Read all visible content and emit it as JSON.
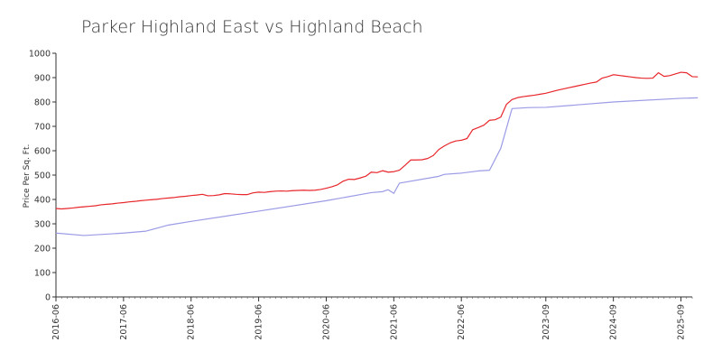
{
  "chart_data": {
    "type": "line",
    "title": "Parker Highland East vs Highland Beach",
    "xlabel": "",
    "ylabel": "Price Per Sq. Ft.",
    "ylim": [
      0,
      1000
    ],
    "yticks": [
      0,
      100,
      200,
      300,
      400,
      500,
      600,
      700,
      800,
      900,
      1000
    ],
    "xticks": [
      "2016-06",
      "2017-06",
      "2018-06",
      "2019-06",
      "2020-06",
      "2021-06",
      "2022-06",
      "2023-09",
      "2024-09",
      "2025-09"
    ],
    "xlim": [
      "2016-06",
      "2025-11"
    ],
    "grid": false,
    "legend": "none",
    "series": [
      {
        "color": "#e8262b",
        "points": [
          [
            "2016-06",
            363
          ],
          [
            "2016-07",
            361
          ],
          [
            "2016-08",
            363
          ],
          [
            "2016-09",
            365
          ],
          [
            "2016-10",
            368
          ],
          [
            "2016-11",
            370
          ],
          [
            "2016-12",
            372
          ],
          [
            "2017-01",
            374
          ],
          [
            "2017-02",
            378
          ],
          [
            "2017-03",
            380
          ],
          [
            "2017-04",
            382
          ],
          [
            "2017-05",
            385
          ],
          [
            "2017-06",
            387
          ],
          [
            "2017-07",
            390
          ],
          [
            "2017-08",
            392
          ],
          [
            "2017-09",
            395
          ],
          [
            "2017-10",
            397
          ],
          [
            "2017-11",
            399
          ],
          [
            "2017-12",
            401
          ],
          [
            "2018-01",
            404
          ],
          [
            "2018-02",
            406
          ],
          [
            "2018-03",
            408
          ],
          [
            "2018-04",
            411
          ],
          [
            "2018-05",
            413
          ],
          [
            "2018-06",
            416
          ],
          [
            "2018-07",
            418
          ],
          [
            "2018-08",
            421
          ],
          [
            "2018-09",
            415
          ],
          [
            "2018-10",
            416
          ],
          [
            "2018-11",
            419
          ],
          [
            "2018-12",
            424
          ],
          [
            "2019-01",
            423
          ],
          [
            "2019-02",
            421
          ],
          [
            "2019-03",
            420
          ],
          [
            "2019-04",
            420
          ],
          [
            "2019-05",
            427
          ],
          [
            "2019-06",
            430
          ],
          [
            "2019-07",
            429
          ],
          [
            "2019-08",
            432
          ],
          [
            "2019-09",
            434
          ],
          [
            "2019-10",
            435
          ],
          [
            "2019-11",
            434
          ],
          [
            "2019-12",
            436
          ],
          [
            "2020-01",
            437
          ],
          [
            "2020-02",
            438
          ],
          [
            "2020-03",
            437
          ],
          [
            "2020-04",
            438
          ],
          [
            "2020-05",
            441
          ],
          [
            "2020-06",
            446
          ],
          [
            "2020-07",
            452
          ],
          [
            "2020-08",
            460
          ],
          [
            "2020-09",
            475
          ],
          [
            "2020-10",
            483
          ],
          [
            "2020-11",
            482
          ],
          [
            "2020-12",
            488
          ],
          [
            "2021-01",
            495
          ],
          [
            "2021-02",
            512
          ],
          [
            "2021-03",
            510
          ],
          [
            "2021-04",
            518
          ],
          [
            "2021-05",
            512
          ],
          [
            "2021-06",
            514
          ],
          [
            "2021-07",
            520
          ],
          [
            "2021-08",
            540
          ],
          [
            "2021-09",
            562
          ],
          [
            "2021-10",
            562
          ],
          [
            "2021-11",
            563
          ],
          [
            "2021-12",
            568
          ],
          [
            "2022-01",
            580
          ],
          [
            "2022-02",
            605
          ],
          [
            "2022-03",
            620
          ],
          [
            "2022-04",
            632
          ],
          [
            "2022-05",
            640
          ],
          [
            "2022-06",
            643
          ],
          [
            "2022-07",
            650
          ],
          [
            "2022-08",
            686
          ],
          [
            "2022-09",
            695
          ],
          [
            "2022-10",
            705
          ],
          [
            "2022-11",
            725
          ],
          [
            "2022-12",
            727
          ],
          [
            "2023-01",
            738
          ],
          [
            "2023-02",
            790
          ],
          [
            "2023-03",
            810
          ],
          [
            "2023-04",
            818
          ],
          [
            "2023-05",
            822
          ],
          [
            "2023-06",
            825
          ],
          [
            "2023-07",
            828
          ],
          [
            "2023-08",
            832
          ],
          [
            "2023-09",
            836
          ],
          [
            "2023-10",
            842
          ],
          [
            "2023-11",
            848
          ],
          [
            "2023-12",
            853
          ],
          [
            "2024-01",
            858
          ],
          [
            "2024-02",
            863
          ],
          [
            "2024-03",
            868
          ],
          [
            "2024-04",
            873
          ],
          [
            "2024-05",
            878
          ],
          [
            "2024-06",
            882
          ],
          [
            "2024-07",
            898
          ],
          [
            "2024-08",
            904
          ],
          [
            "2024-09",
            912
          ],
          [
            "2024-10",
            909
          ],
          [
            "2024-11",
            906
          ],
          [
            "2024-12",
            903
          ],
          [
            "2025-01",
            900
          ],
          [
            "2025-02",
            898
          ],
          [
            "2025-03",
            897
          ],
          [
            "2025-04",
            898
          ],
          [
            "2025-05",
            920
          ],
          [
            "2025-06",
            905
          ],
          [
            "2025-07",
            908
          ],
          [
            "2025-08",
            915
          ],
          [
            "2025-09",
            922
          ],
          [
            "2025-10",
            920
          ],
          [
            "2025-11",
            904
          ],
          [
            "2025-12",
            903
          ]
        ]
      },
      {
        "color": "#9b9be6",
        "points": [
          [
            "2016-06",
            262
          ],
          [
            "2016-11",
            252
          ],
          [
            "2017-06",
            262
          ],
          [
            "2017-10",
            270
          ],
          [
            "2018-02",
            295
          ],
          [
            "2018-06",
            310
          ],
          [
            "2019-06",
            352
          ],
          [
            "2020-06",
            395
          ],
          [
            "2021-02",
            428
          ],
          [
            "2021-04",
            432
          ],
          [
            "2021-05",
            440
          ],
          [
            "2021-06",
            425
          ],
          [
            "2021-07",
            467
          ],
          [
            "2022-02",
            495
          ],
          [
            "2022-03",
            503
          ],
          [
            "2022-06",
            508
          ],
          [
            "2022-09",
            517
          ],
          [
            "2022-11",
            520
          ],
          [
            "2023-01",
            610
          ],
          [
            "2023-03",
            773
          ],
          [
            "2023-06",
            777
          ],
          [
            "2023-09",
            778
          ],
          [
            "2024-09",
            800
          ],
          [
            "2025-09",
            815
          ],
          [
            "2025-12",
            817
          ]
        ]
      }
    ]
  }
}
